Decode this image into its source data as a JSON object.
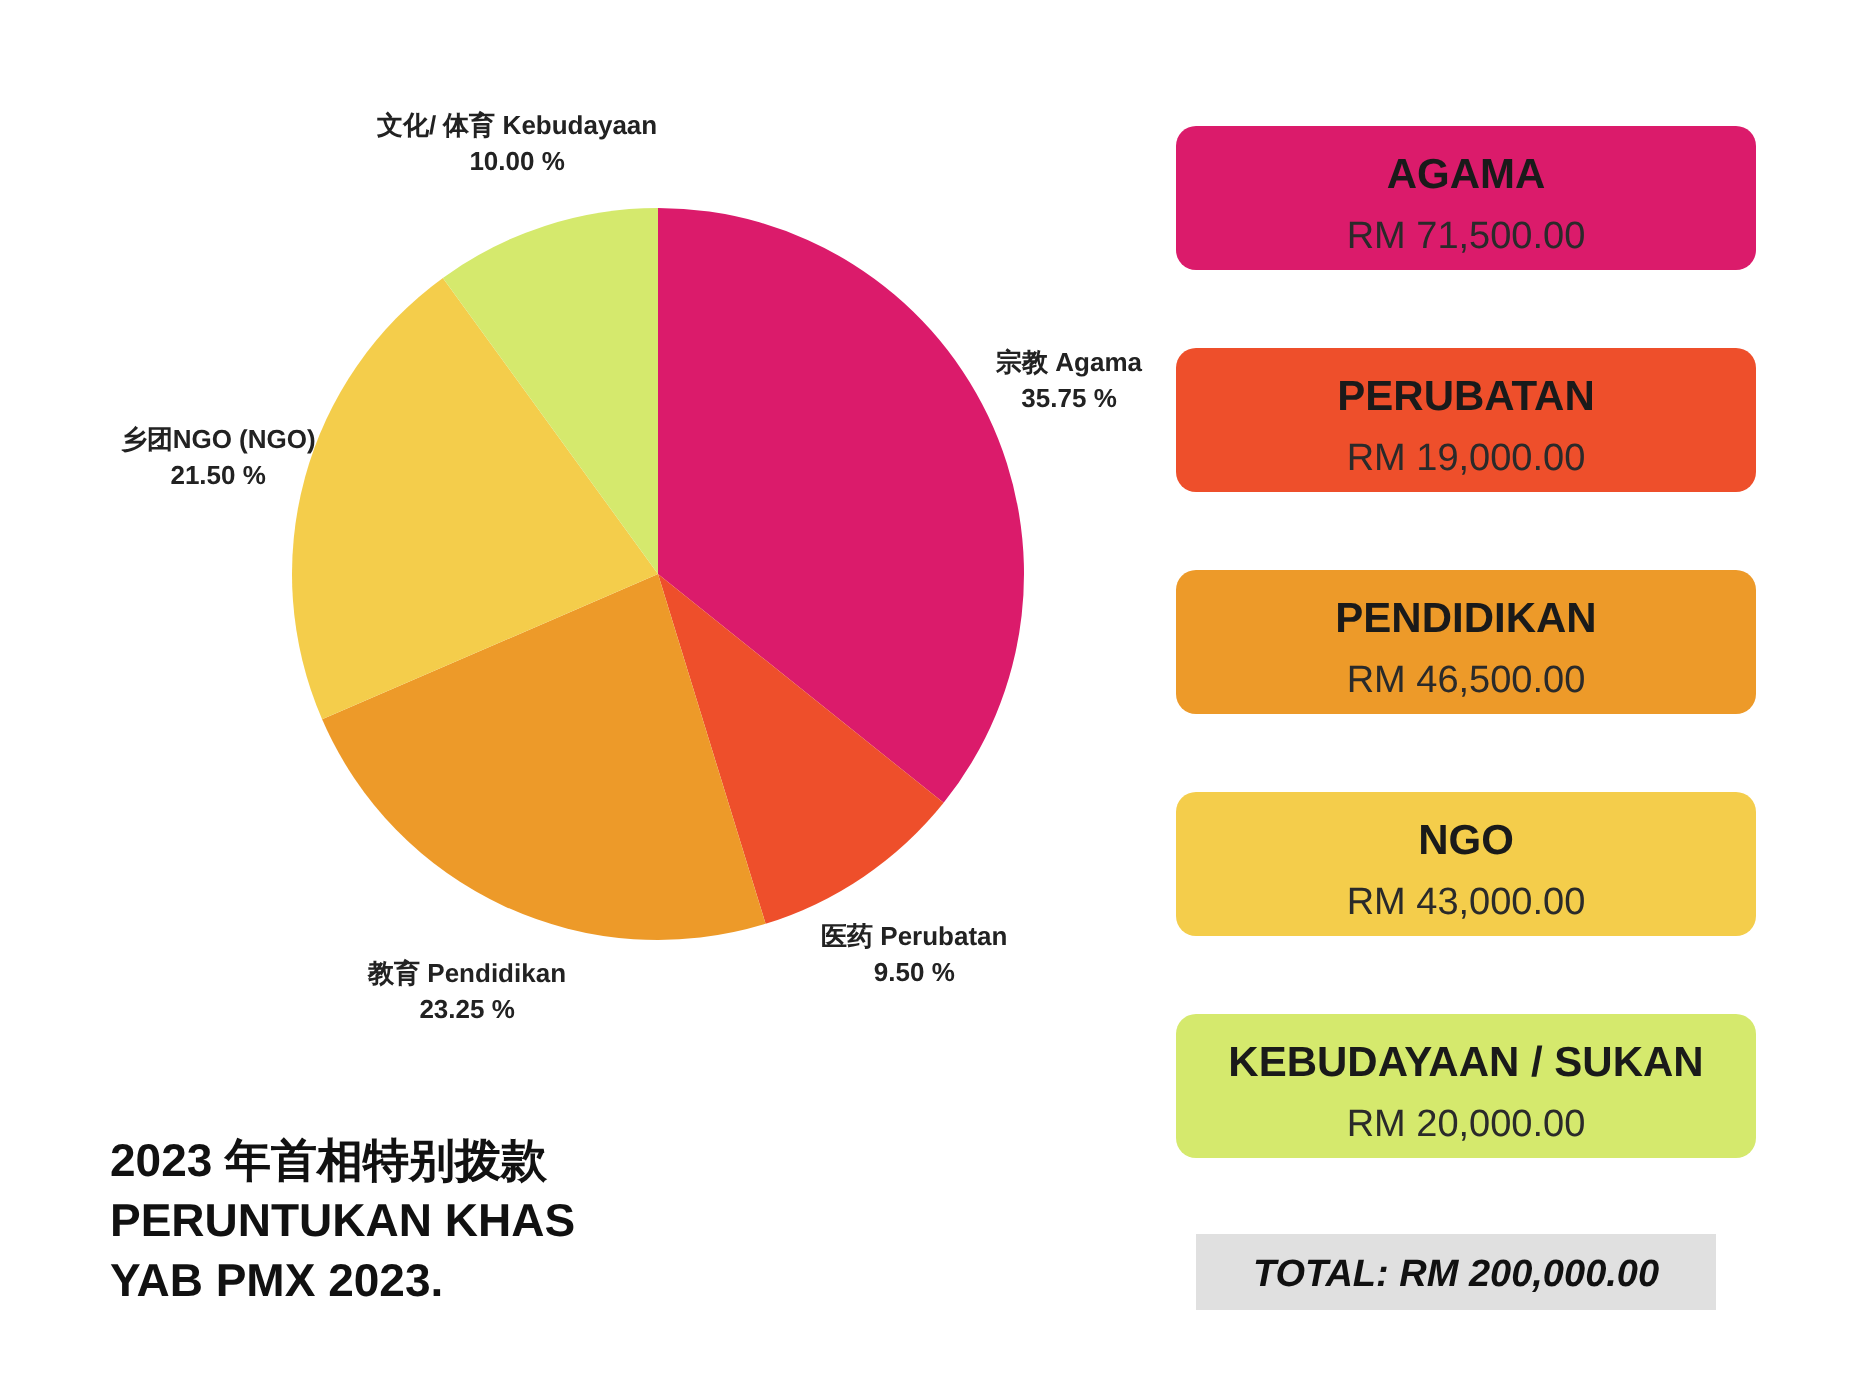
{
  "chart_data": [
    {
      "type": "pie",
      "title": "2023 年首相特别拨款\nPERUNTUKAN KHAS\nYAB PMX 2023.",
      "categories": [
        "宗教 Agama",
        "医药 Perubatan",
        "教育 Pendidikan",
        "乡团NGO (NGO)",
        "文化/ 体育 Kebudayaan"
      ],
      "values": [
        35.75,
        9.5,
        23.25,
        21.5,
        10
      ],
      "value_labels": [
        "35.75 %",
        "9.50 %",
        "23.25 %",
        "21.50 %",
        "10.00 %"
      ],
      "colors": [
        "#db1b6b",
        "#ee4f2b",
        "#ed9a29",
        "#f4cd4b",
        "#d5e96d"
      ]
    },
    {
      "type": "other",
      "categories": [
        "AGAMA",
        "PERUBATAN",
        "PENDIDIKAN",
        "NGO",
        "KEBUDAYAAN / SUKAN"
      ],
      "value_labels": [
        "RM 71,500.00",
        "RM 19,000.00",
        "RM 46,500.00",
        "RM 43,000.00",
        "RM 20,000.00"
      ],
      "colors": [
        "#db1b6b",
        "#ee4f2b",
        "#ed9a29",
        "#f4cd4b",
        "#d5e96d"
      ],
      "annotations": [
        "TOTAL: RM 200,000.00"
      ]
    }
  ]
}
